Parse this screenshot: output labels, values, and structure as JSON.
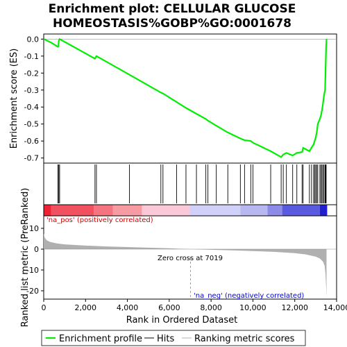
{
  "chart_data": {
    "type": "line",
    "title_line1": "Enrichment plot: CELLULAR GLUCOSE",
    "title_line2": "HOMEOSTASIS%GOBP%GO:0001678",
    "es_panel": {
      "ylabel": "Enrichment score (ES)",
      "ylim": [
        -0.73,
        0.03
      ],
      "yticks": [
        0.0,
        -0.1,
        -0.2,
        -0.3,
        -0.4,
        -0.5,
        -0.6,
        -0.7
      ],
      "ytick_labels": [
        "0.0",
        "-0.1",
        "-0.2",
        "-0.3",
        "-0.4",
        "-0.5",
        "-0.6",
        "-0.7"
      ],
      "color": "#00ee00",
      "points": [
        [
          0,
          0.0
        ],
        [
          350,
          -0.02
        ],
        [
          680,
          -0.045
        ],
        [
          700,
          -0.04
        ],
        [
          720,
          -0.01
        ],
        [
          760,
          0.0
        ],
        [
          2450,
          -0.115
        ],
        [
          2520,
          -0.1
        ],
        [
          4100,
          -0.21
        ],
        [
          5600,
          -0.315
        ],
        [
          5700,
          -0.32
        ],
        [
          6350,
          -0.37
        ],
        [
          6800,
          -0.405
        ],
        [
          7300,
          -0.44
        ],
        [
          7750,
          -0.47
        ],
        [
          7850,
          -0.48
        ],
        [
          8250,
          -0.51
        ],
        [
          8800,
          -0.55
        ],
        [
          9400,
          -0.585
        ],
        [
          9600,
          -0.595
        ],
        [
          9900,
          -0.6
        ],
        [
          10000,
          -0.61
        ],
        [
          10850,
          -0.66
        ],
        [
          11350,
          -0.695
        ],
        [
          11450,
          -0.68
        ],
        [
          11600,
          -0.67
        ],
        [
          11900,
          -0.685
        ],
        [
          12100,
          -0.67
        ],
        [
          12350,
          -0.665
        ],
        [
          12400,
          -0.64
        ],
        [
          12700,
          -0.66
        ],
        [
          12800,
          -0.64
        ],
        [
          12900,
          -0.62
        ],
        [
          12950,
          -0.6
        ],
        [
          13000,
          -0.58
        ],
        [
          13050,
          -0.55
        ],
        [
          13100,
          -0.5
        ],
        [
          13200,
          -0.47
        ],
        [
          13250,
          -0.45
        ],
        [
          13300,
          -0.42
        ],
        [
          13350,
          -0.38
        ],
        [
          13400,
          -0.33
        ],
        [
          13450,
          -0.3
        ],
        [
          13480,
          -0.15
        ],
        [
          13500,
          -0.05
        ],
        [
          13520,
          0.0
        ]
      ]
    },
    "hits_panel": {
      "hit_positions": [
        680,
        720,
        760,
        2450,
        2520,
        4100,
        5600,
        5700,
        6350,
        6800,
        7300,
        7750,
        7850,
        8250,
        8800,
        9400,
        9600,
        9900,
        10000,
        10850,
        11350,
        11450,
        11600,
        11900,
        12100,
        12350,
        12400,
        12700,
        12800,
        12900,
        12950,
        13000,
        13050,
        13100,
        13200,
        13250,
        13300,
        13350,
        13400,
        13450,
        13480,
        13500
      ]
    },
    "heatmap_strip": {
      "segments": [
        {
          "from": 0,
          "to": 350,
          "color": "#ee2233"
        },
        {
          "from": 350,
          "to": 2400,
          "color": "#f05060"
        },
        {
          "from": 2400,
          "to": 3300,
          "color": "#f47480"
        },
        {
          "from": 3300,
          "to": 4700,
          "color": "#f89aa2"
        },
        {
          "from": 4700,
          "to": 7000,
          "color": "#fbc8d8"
        },
        {
          "from": 7000,
          "to": 9400,
          "color": "#d0d0f8"
        },
        {
          "from": 9400,
          "to": 10700,
          "color": "#b8b8f0"
        },
        {
          "from": 10700,
          "to": 11400,
          "color": "#8c8ce8"
        },
        {
          "from": 11400,
          "to": 13200,
          "color": "#5a5ae0"
        },
        {
          "from": 13200,
          "to": 13550,
          "color": "#2020d0"
        }
      ]
    },
    "metric_panel": {
      "ylabel": "Ranked list metric (PreRanked)",
      "ylim": [
        -24,
        16
      ],
      "yticks": [
        10,
        0,
        -10,
        -20
      ],
      "ytick_labels": [
        "10",
        "0",
        "-10",
        "-20"
      ],
      "fill_color": "#b0b0b0",
      "curve": [
        [
          0,
          7.5
        ],
        [
          50,
          5.5
        ],
        [
          150,
          4.2
        ],
        [
          300,
          3.5
        ],
        [
          600,
          2.8
        ],
        [
          1000,
          2.3
        ],
        [
          2000,
          1.7
        ],
        [
          3000,
          1.3
        ],
        [
          4000,
          1.0
        ],
        [
          5000,
          0.7
        ],
        [
          6000,
          0.4
        ],
        [
          7019,
          0.0
        ],
        [
          8000,
          -0.3
        ],
        [
          9000,
          -0.6
        ],
        [
          10000,
          -0.9
        ],
        [
          11000,
          -1.3
        ],
        [
          12000,
          -1.9
        ],
        [
          12500,
          -2.5
        ],
        [
          13000,
          -3.6
        ],
        [
          13200,
          -4.5
        ],
        [
          13350,
          -6.0
        ],
        [
          13430,
          -8.0
        ],
        [
          13470,
          -12.0
        ],
        [
          13500,
          -18.0
        ],
        [
          13520,
          -23.0
        ]
      ],
      "zero_cross_position": 7019,
      "zero_cross_text": "Zero cross at 7019",
      "pos_label": "'na_pos' (positively correlated)",
      "neg_label": "'na_neg' (negatively correlated)"
    },
    "x_axis": {
      "xlabel": "Rank in Ordered Dataset",
      "xlim": [
        0,
        14000
      ],
      "xticks": [
        0,
        2000,
        4000,
        6000,
        8000,
        10000,
        12000,
        14000
      ],
      "xtick_labels": [
        "0",
        "2,000",
        "4,000",
        "6,000",
        "8,000",
        "10,000",
        "12,000",
        "14,000"
      ]
    },
    "legend": {
      "entries": [
        {
          "label": "Enrichment profile",
          "color": "#00ee00"
        },
        {
          "label": "Hits",
          "color": "#000000"
        },
        {
          "label": "Ranking metric scores",
          "color": "#b0b0b0"
        }
      ]
    }
  }
}
